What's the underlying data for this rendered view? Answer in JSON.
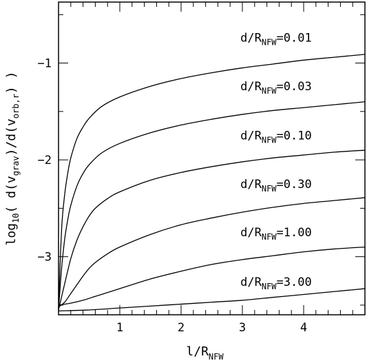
{
  "chart_data": {
    "type": "line",
    "title": "",
    "xlabel": "l/R",
    "xlabel_sub": "NFW",
    "ylabel": {
      "parts": [
        {
          "text": "log",
          "role": "base"
        },
        {
          "text": "10",
          "role": "sub"
        },
        {
          "text": "( d(v",
          "role": "base"
        },
        {
          "text": "grav",
          "role": "sub"
        },
        {
          "text": ")/d(v",
          "role": "base"
        },
        {
          "text": "orb,r",
          "role": "sub"
        },
        {
          "text": ") )",
          "role": "base"
        }
      ]
    },
    "xlim": [
      0,
      5
    ],
    "ylim": [
      -3.6,
      -0.37
    ],
    "x_ticks": [
      1,
      2,
      3,
      4
    ],
    "x_tick_labels": [
      "1",
      "2",
      "3",
      "4"
    ],
    "y_ticks": [
      -1,
      -2,
      -3
    ],
    "y_tick_labels": [
      "−1",
      "−2",
      "−3"
    ],
    "grid": false,
    "legend": "none",
    "series": [
      {
        "name": "0.01",
        "label_text": {
          "pre": "d/R",
          "sub": "NFW",
          "post": "=0.01"
        },
        "label_pos": [
          3.55,
          -0.78
        ],
        "x": [
          0.0,
          0.05,
          0.1,
          0.15,
          0.2,
          0.3,
          0.4,
          0.5,
          0.7,
          1.0,
          1.5,
          2.0,
          2.5,
          3.0,
          3.5,
          4.0,
          4.5,
          5.0
        ],
        "y": [
          -3.53,
          -2.72,
          -2.36,
          -2.14,
          -1.98,
          -1.78,
          -1.66,
          -1.57,
          -1.45,
          -1.35,
          -1.24,
          -1.16,
          -1.1,
          -1.05,
          -1.01,
          -0.97,
          -0.94,
          -0.91
        ]
      },
      {
        "name": "0.03",
        "label_text": {
          "pre": "d/R",
          "sub": "NFW",
          "post": "=0.03"
        },
        "label_pos": [
          3.55,
          -1.28
        ],
        "x": [
          0.0,
          0.05,
          0.1,
          0.15,
          0.2,
          0.3,
          0.4,
          0.5,
          0.7,
          1.0,
          1.5,
          2.0,
          2.5,
          3.0,
          3.5,
          4.0,
          4.5,
          5.0
        ],
        "y": [
          -3.55,
          -3.12,
          -2.82,
          -2.62,
          -2.47,
          -2.27,
          -2.14,
          -2.05,
          -1.93,
          -1.83,
          -1.72,
          -1.64,
          -1.58,
          -1.53,
          -1.49,
          -1.46,
          -1.43,
          -1.4
        ]
      },
      {
        "name": "0.10",
        "label_text": {
          "pre": "d/R",
          "sub": "NFW",
          "post": "=0.10"
        },
        "label_pos": [
          3.55,
          -1.79
        ],
        "x": [
          0.0,
          0.1,
          0.2,
          0.3,
          0.4,
          0.5,
          0.6,
          0.8,
          1.0,
          1.5,
          2.0,
          2.5,
          3.0,
          3.5,
          4.0,
          4.5,
          5.0
        ],
        "y": [
          -3.55,
          -3.28,
          -3.02,
          -2.83,
          -2.69,
          -2.58,
          -2.5,
          -2.4,
          -2.33,
          -2.21,
          -2.13,
          -2.07,
          -2.02,
          -1.98,
          -1.95,
          -1.92,
          -1.9
        ]
      },
      {
        "name": "0.30",
        "label_text": {
          "pre": "d/R",
          "sub": "NFW",
          "post": "=0.30"
        },
        "label_pos": [
          3.55,
          -2.29
        ],
        "x": [
          0.0,
          0.1,
          0.2,
          0.3,
          0.4,
          0.5,
          0.6,
          0.8,
          1.0,
          1.5,
          2.0,
          2.5,
          3.0,
          3.5,
          4.0,
          4.5,
          5.0
        ],
        "y": [
          -3.52,
          -3.47,
          -3.38,
          -3.29,
          -3.2,
          -3.12,
          -3.06,
          -2.97,
          -2.9,
          -2.77,
          -2.67,
          -2.6,
          -2.54,
          -2.49,
          -2.45,
          -2.42,
          -2.39
        ]
      },
      {
        "name": "1.00",
        "label_text": {
          "pre": "d/R",
          "sub": "NFW",
          "post": "=1.00"
        },
        "label_pos": [
          3.55,
          -2.79
        ],
        "x": [
          0.0,
          0.2,
          0.4,
          0.6,
          0.8,
          1.0,
          1.5,
          2.0,
          2.5,
          3.0,
          3.5,
          4.0,
          4.5,
          5.0
        ],
        "y": [
          -3.5,
          -3.48,
          -3.45,
          -3.41,
          -3.37,
          -3.33,
          -3.23,
          -3.15,
          -3.08,
          -3.03,
          -2.99,
          -2.95,
          -2.92,
          -2.9
        ]
      },
      {
        "name": "3.00",
        "label_text": {
          "pre": "d/R",
          "sub": "NFW",
          "post": "=3.00"
        },
        "label_pos": [
          3.55,
          -3.3
        ],
        "x": [
          0.0,
          0.5,
          1.0,
          1.5,
          2.0,
          2.5,
          3.0,
          3.5,
          4.0,
          4.5,
          5.0
        ],
        "y": [
          -3.56,
          -3.55,
          -3.53,
          -3.51,
          -3.49,
          -3.47,
          -3.45,
          -3.42,
          -3.39,
          -3.36,
          -3.33
        ]
      }
    ]
  }
}
